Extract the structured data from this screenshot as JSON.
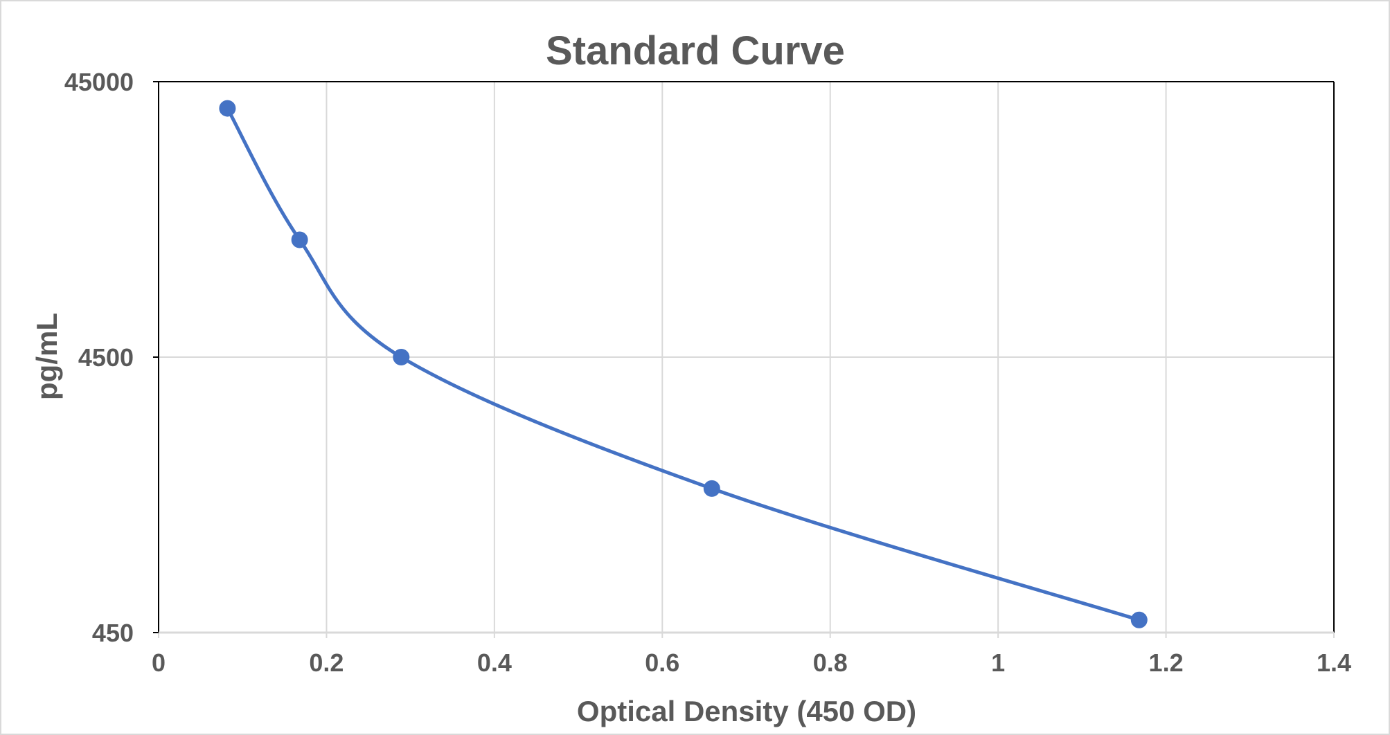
{
  "chart_data": {
    "type": "scatter",
    "title": "Standard Curve",
    "xlabel": "Optical Density (450 OD)",
    "ylabel": "pg/mL",
    "xlim": [
      0,
      1.4
    ],
    "ylim": [
      450,
      45000
    ],
    "y_scale": "log",
    "x_ticks": [
      "0",
      "0.2",
      "0.4",
      "0.6",
      "0.8",
      "1",
      "1.2",
      "1.4"
    ],
    "y_ticks": [
      "450",
      "4500",
      "45000"
    ],
    "grid": true,
    "legend": "none",
    "line_style": "smooth",
    "colors": {
      "series": "#4472C4",
      "text": "#595959",
      "grid": "#D9D9D9",
      "axis": "#000000"
    },
    "series": [
      {
        "x": [
          0.082,
          0.168,
          0.289,
          0.659,
          1.168
        ],
        "y": [
          36000,
          12000,
          4500,
          1500,
          500
        ]
      }
    ]
  }
}
